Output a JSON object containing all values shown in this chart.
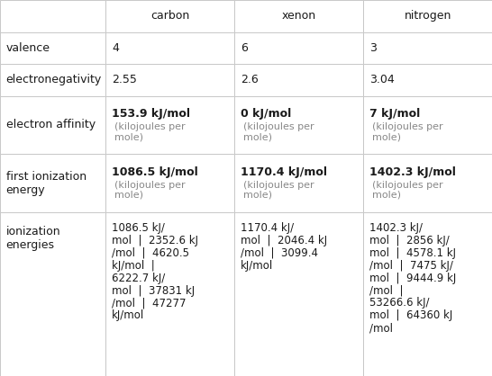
{
  "columns": [
    "",
    "carbon",
    "xenon",
    "nitrogen"
  ],
  "rows": [
    {
      "label": "valence",
      "carbon": "4",
      "xenon": "6",
      "nitrogen": "3",
      "type": "simple"
    },
    {
      "label": "electronegativity",
      "carbon": "2.55",
      "xenon": "2.6",
      "nitrogen": "3.04",
      "type": "simple"
    },
    {
      "label": "electron affinity",
      "carbon_bold": "153.9 kJ/mol",
      "carbon_sub": "(kilojoules per\nmole)",
      "xenon_bold": "0 kJ/mol",
      "xenon_sub": "(kilojoules per\nmole)",
      "nitrogen_bold": "7 kJ/mol",
      "nitrogen_sub": "(kilojoules per\nmole)",
      "type": "bold_sub"
    },
    {
      "label": "first ionization\nenergy",
      "carbon_bold": "1086.5 kJ/mol",
      "carbon_sub": "(kilojoules per\nmole)",
      "xenon_bold": "1170.4 kJ/mol",
      "xenon_sub": "(kilojoules per\nmole)",
      "nitrogen_bold": "1402.3 kJ/mol",
      "nitrogen_sub": "(kilojoules per\nmole)",
      "type": "bold_sub"
    },
    {
      "label": "ionization\nenergies",
      "carbon": "1086.5 kJ/\nmol  |  2352.6 kJ\n/mol  |  4620.5\nkJ/mol  |\n6222.7 kJ/\nmol  |  37831 kJ\n/mol  |  47277\nkJ/mol",
      "xenon": "1170.4 kJ/\nmol  |  2046.4 kJ\n/mol  |  3099.4\nkJ/mol",
      "nitrogen": "1402.3 kJ/\nmol  |  2856 kJ/\nmol  |  4578.1 kJ\n/mol  |  7475 kJ/\nmol  |  9444.9 kJ\n/mol  |\n53266.6 kJ/\nmol  |  64360 kJ\n/mol",
      "type": "multiline"
    }
  ],
  "border_color": "#c8c8c8",
  "text_color": "#1a1a1a",
  "subtext_color": "#888888",
  "header_fontsize": 9,
  "cell_fontsize": 9,
  "bold_fontsize": 9,
  "sub_fontsize": 8,
  "multi_fontsize": 8.5
}
